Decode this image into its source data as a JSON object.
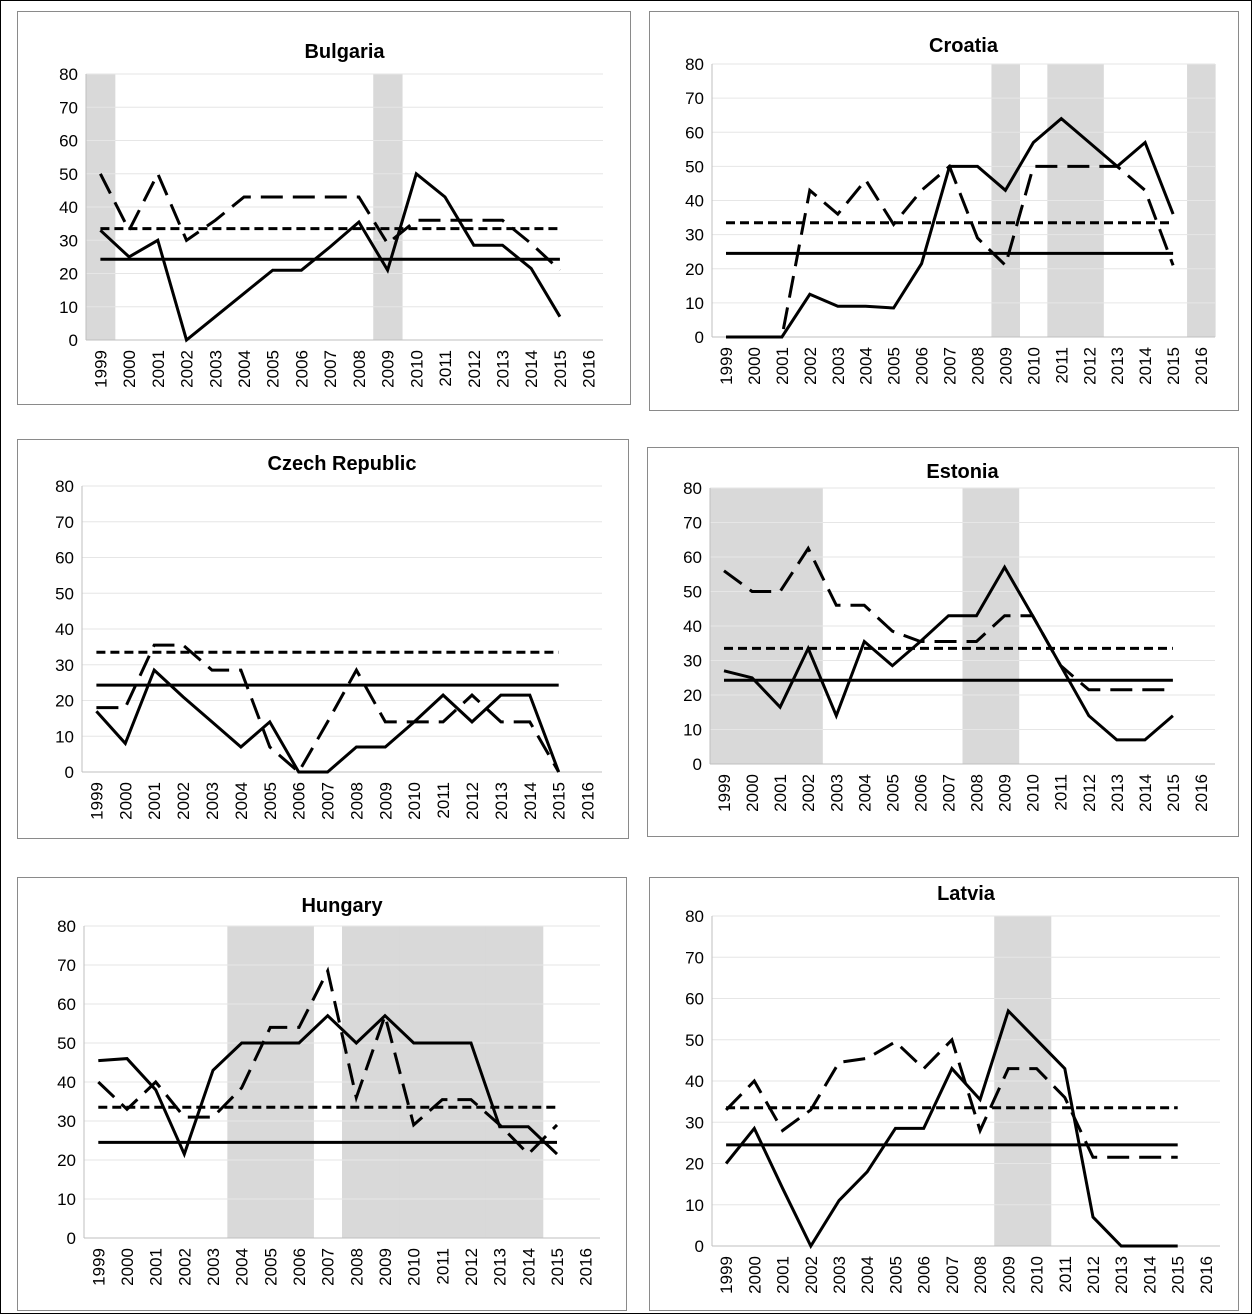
{
  "figure": {
    "colors": {
      "shade": "#d9d9d9",
      "line": "#000000",
      "grid": "#e6e6e6",
      "axis": "#bfbfbf"
    }
  },
  "chart_data": [
    {
      "type": "line",
      "title": "Bulgaria",
      "categories": [
        "1999",
        "2000",
        "2001",
        "2002",
        "2003",
        "2004",
        "2005",
        "2006",
        "2007",
        "2008",
        "2009",
        "2010",
        "2011",
        "2012",
        "2013",
        "2014",
        "2015",
        "2016"
      ],
      "ylim": [
        0,
        80
      ],
      "yticks": [
        0,
        10,
        20,
        30,
        40,
        50,
        60,
        70,
        80
      ],
      "grid": true,
      "shaded_years": [
        "1999",
        "2009"
      ],
      "series": [
        {
          "style": "solid",
          "values": [
            33,
            25,
            30,
            0,
            7,
            14,
            21,
            21,
            28,
            35.5,
            21,
            50,
            43,
            28.5,
            28.5,
            21.5,
            7,
            null
          ]
        },
        {
          "style": "long-dash",
          "values": [
            50,
            33,
            50,
            30,
            36,
            43,
            43,
            43,
            43,
            43,
            29,
            36,
            36,
            36,
            36,
            29,
            21,
            null
          ]
        },
        {
          "style": "short-dash",
          "values": [
            33.5,
            33.5,
            33.5,
            33.5,
            33.5,
            33.5,
            33.5,
            33.5,
            33.5,
            33.5,
            33.5,
            33.5,
            33.5,
            33.5,
            33.5,
            33.5,
            33.5,
            null
          ]
        },
        {
          "style": "solid-flat",
          "values": [
            24.3,
            24.3,
            24.3,
            24.3,
            24.3,
            24.3,
            24.3,
            24.3,
            24.3,
            24.3,
            24.3,
            24.3,
            24.3,
            24.3,
            24.3,
            24.3,
            24.3,
            null
          ]
        }
      ]
    },
    {
      "type": "line",
      "title": "Croatia",
      "categories": [
        "1999",
        "2000",
        "2001",
        "2002",
        "2003",
        "2004",
        "2005",
        "2006",
        "2007",
        "2008",
        "2009",
        "2010",
        "2011",
        "2012",
        "2013",
        "2014",
        "2015",
        "2016"
      ],
      "ylim": [
        0,
        80
      ],
      "yticks": [
        0,
        10,
        20,
        30,
        40,
        50,
        60,
        70,
        80
      ],
      "grid": true,
      "shaded_years": [
        "2009",
        "2011",
        "2012",
        "2016"
      ],
      "series": [
        {
          "style": "solid",
          "values": [
            0,
            0,
            0,
            12.5,
            9,
            9,
            8.5,
            21.5,
            50,
            50,
            43,
            57,
            64,
            57,
            50,
            57,
            36,
            null
          ]
        },
        {
          "style": "long-dash",
          "values": [
            0,
            0,
            0,
            43,
            36,
            46,
            33,
            43,
            50,
            29,
            21,
            50,
            50,
            50,
            50,
            43,
            21,
            null
          ]
        },
        {
          "style": "short-dash",
          "values": [
            33.5,
            33.5,
            33.5,
            33.5,
            33.5,
            33.5,
            33.5,
            33.5,
            33.5,
            33.5,
            33.5,
            33.5,
            33.5,
            33.5,
            33.5,
            33.5,
            33.5,
            null
          ]
        },
        {
          "style": "solid-flat",
          "values": [
            24.5,
            24.5,
            24.5,
            24.5,
            24.5,
            24.5,
            24.5,
            24.5,
            24.5,
            24.5,
            24.5,
            24.5,
            24.5,
            24.5,
            24.5,
            24.5,
            24.5,
            null
          ]
        }
      ]
    },
    {
      "type": "line",
      "title": "Czech Republic",
      "categories": [
        "1999",
        "2000",
        "2001",
        "2002",
        "2003",
        "2004",
        "2005",
        "2006",
        "2007",
        "2008",
        "2009",
        "2010",
        "2011",
        "2012",
        "2013",
        "2014",
        "2015",
        "2016"
      ],
      "ylim": [
        0,
        80
      ],
      "yticks": [
        0,
        10,
        20,
        30,
        40,
        50,
        60,
        70,
        80
      ],
      "grid": true,
      "shaded_years": [],
      "series": [
        {
          "style": "solid",
          "values": [
            17,
            8,
            28.5,
            21,
            14,
            7,
            14,
            0,
            0,
            7,
            7,
            14,
            21.5,
            14,
            21.5,
            21.5,
            0,
            null
          ]
        },
        {
          "style": "long-dash",
          "values": [
            18,
            18,
            35.5,
            35.5,
            28.5,
            28.5,
            7,
            0,
            14,
            28.5,
            14,
            14,
            14,
            21.5,
            14,
            14,
            0,
            null
          ]
        },
        {
          "style": "short-dash",
          "values": [
            33.5,
            33.5,
            33.5,
            33.5,
            33.5,
            33.5,
            33.5,
            33.5,
            33.5,
            33.5,
            33.5,
            33.5,
            33.5,
            33.5,
            33.5,
            33.5,
            33.5,
            null
          ]
        },
        {
          "style": "solid-flat",
          "values": [
            24.3,
            24.3,
            24.3,
            24.3,
            24.3,
            24.3,
            24.3,
            24.3,
            24.3,
            24.3,
            24.3,
            24.3,
            24.3,
            24.3,
            24.3,
            24.3,
            24.3,
            null
          ]
        }
      ]
    },
    {
      "type": "line",
      "title": "Estonia",
      "categories": [
        "1999",
        "2000",
        "2001",
        "2002",
        "2003",
        "2004",
        "2005",
        "2006",
        "2007",
        "2008",
        "2009",
        "2010",
        "2011",
        "2012",
        "2013",
        "2014",
        "2015",
        "2016"
      ],
      "ylim": [
        0,
        80
      ],
      "yticks": [
        0,
        10,
        20,
        30,
        40,
        50,
        60,
        70,
        80
      ],
      "grid": true,
      "shaded_years": [
        "1999",
        "2000",
        "2001",
        "2002",
        "2008",
        "2009"
      ],
      "series": [
        {
          "style": "solid",
          "values": [
            27,
            25,
            16.5,
            33.5,
            14,
            35.5,
            28.5,
            35.5,
            43,
            43,
            57,
            43,
            28.5,
            14,
            7,
            7,
            14,
            null
          ]
        },
        {
          "style": "long-dash",
          "values": [
            56,
            50,
            50,
            62.5,
            46,
            46,
            38.5,
            35.5,
            35.5,
            35.5,
            43,
            43,
            28.5,
            21.5,
            21.5,
            21.5,
            21.5,
            null
          ]
        },
        {
          "style": "short-dash",
          "values": [
            33.5,
            33.5,
            33.5,
            33.5,
            33.5,
            33.5,
            33.5,
            33.5,
            33.5,
            33.5,
            33.5,
            33.5,
            33.5,
            33.5,
            33.5,
            33.5,
            33.5,
            null
          ]
        },
        {
          "style": "solid-flat",
          "values": [
            24.3,
            24.3,
            24.3,
            24.3,
            24.3,
            24.3,
            24.3,
            24.3,
            24.3,
            24.3,
            24.3,
            24.3,
            24.3,
            24.3,
            24.3,
            24.3,
            24.3,
            null
          ]
        }
      ]
    },
    {
      "type": "line",
      "title": "Hungary",
      "categories": [
        "1999",
        "2000",
        "2001",
        "2002",
        "2003",
        "2004",
        "2005",
        "2006",
        "2007",
        "2008",
        "2009",
        "2010",
        "2011",
        "2012",
        "2013",
        "2014",
        "2015",
        "2016"
      ],
      "ylim": [
        0,
        80
      ],
      "yticks": [
        0,
        10,
        20,
        30,
        40,
        50,
        60,
        70,
        80
      ],
      "grid": true,
      "shaded_years": [
        "2004",
        "2005",
        "2006",
        "2008",
        "2009",
        "2010",
        "2011",
        "2012",
        "2013",
        "2014"
      ],
      "series": [
        {
          "style": "solid",
          "values": [
            45.5,
            46,
            38,
            21.5,
            43,
            50,
            50,
            50,
            57,
            50,
            57,
            50,
            50,
            50,
            28.5,
            28.5,
            21.5,
            null
          ]
        },
        {
          "style": "long-dash",
          "values": [
            40,
            33,
            40,
            31,
            31,
            38.5,
            54,
            54,
            68.5,
            36,
            57,
            29,
            35.5,
            35.5,
            29,
            21.5,
            29,
            null
          ]
        },
        {
          "style": "short-dash",
          "values": [
            33.5,
            33.5,
            33.5,
            33.5,
            33.5,
            33.5,
            33.5,
            33.5,
            33.5,
            33.5,
            33.5,
            33.5,
            33.5,
            33.5,
            33.5,
            33.5,
            33.5,
            null
          ]
        },
        {
          "style": "solid-flat",
          "values": [
            24.5,
            24.5,
            24.5,
            24.5,
            24.5,
            24.5,
            24.5,
            24.5,
            24.5,
            24.5,
            24.5,
            24.5,
            24.5,
            24.5,
            24.5,
            24.5,
            24.5,
            null
          ]
        }
      ]
    },
    {
      "type": "line",
      "title": "Latvia",
      "categories": [
        "1999",
        "2000",
        "2001",
        "2002",
        "2003",
        "2004",
        "2005",
        "2006",
        "2007",
        "2008",
        "2009",
        "2010",
        "2011",
        "2012",
        "2013",
        "2014",
        "2015",
        "2016"
      ],
      "ylim": [
        0,
        80
      ],
      "yticks": [
        0,
        10,
        20,
        30,
        40,
        50,
        60,
        70,
        80
      ],
      "grid": true,
      "shaded_years": [
        "2009",
        "2010"
      ],
      "series": [
        {
          "style": "solid",
          "values": [
            20,
            28.5,
            14,
            0,
            11,
            18,
            28.5,
            28.5,
            43,
            35.5,
            57,
            50,
            43,
            7,
            0,
            0,
            0,
            null
          ]
        },
        {
          "style": "long-dash",
          "values": [
            33,
            40,
            28,
            33,
            44.5,
            45.5,
            49.5,
            43,
            50,
            28,
            43,
            43,
            36,
            21.5,
            21.5,
            21.5,
            21.5,
            null
          ]
        },
        {
          "style": "short-dash",
          "values": [
            33.5,
            33.5,
            33.5,
            33.5,
            33.5,
            33.5,
            33.5,
            33.5,
            33.5,
            33.5,
            33.5,
            33.5,
            33.5,
            33.5,
            33.5,
            33.5,
            33.5,
            null
          ]
        },
        {
          "style": "solid-flat",
          "values": [
            24.5,
            24.5,
            24.5,
            24.5,
            24.5,
            24.5,
            24.5,
            24.5,
            24.5,
            24.5,
            24.5,
            24.5,
            24.5,
            24.5,
            24.5,
            24.5,
            24.5,
            null
          ]
        }
      ]
    }
  ]
}
